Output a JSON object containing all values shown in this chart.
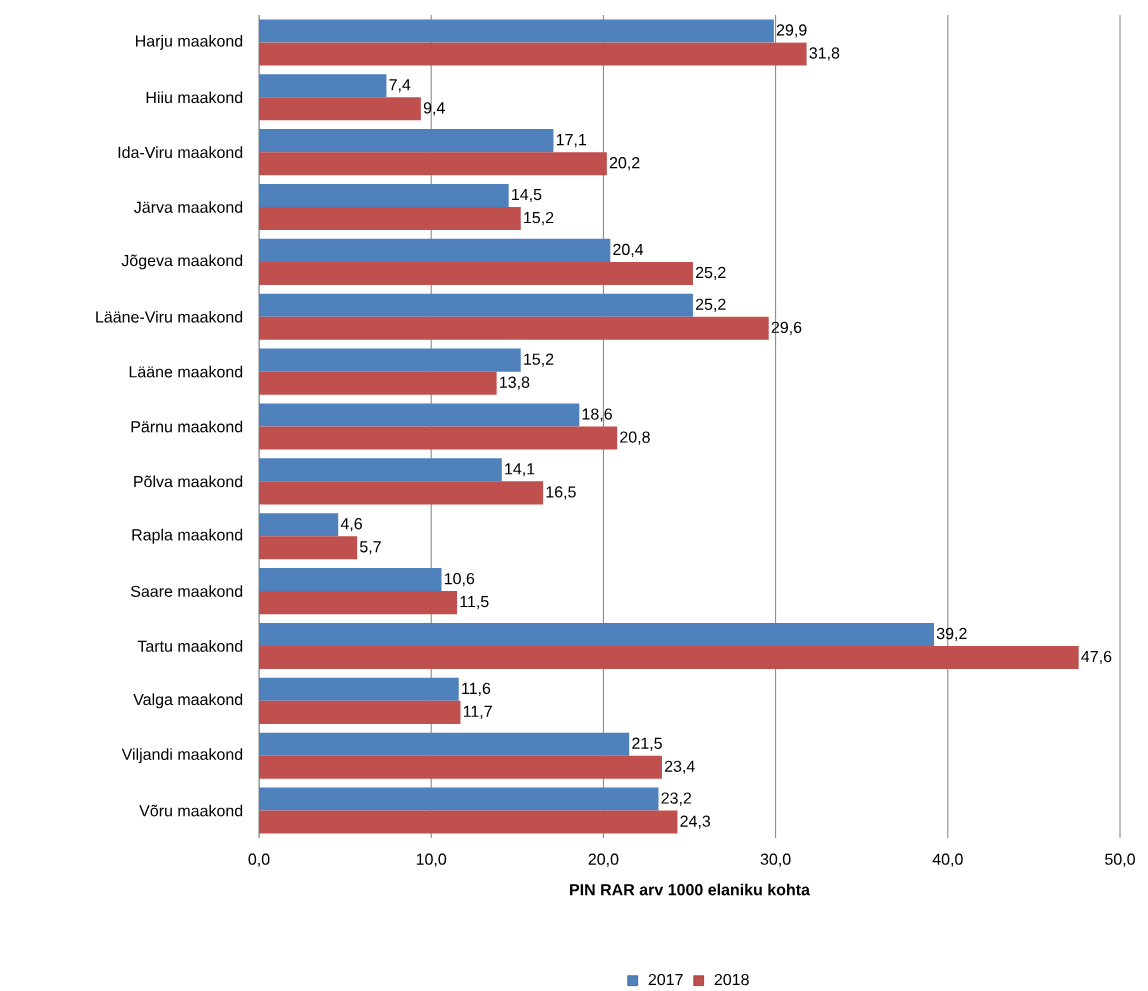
{
  "chart_data": {
    "type": "bar",
    "orientation": "horizontal",
    "xlabel": "PIN RAR arv 1000 elaniku kohta",
    "categories": [
      "Harju maakond",
      "Hiiu maakond",
      "Ida-Viru maakond",
      "Järva maakond",
      "Jõgeva maakond",
      "Lääne-Viru maakond",
      "Lääne maakond",
      "Pärnu maakond",
      "Põlva maakond",
      "Rapla maakond",
      "Saare maakond",
      "Tartu maakond",
      "Valga maakond",
      "Viljandi maakond",
      "Võru maakond"
    ],
    "series": [
      {
        "name": "2017",
        "color": "#4f81bd",
        "values": [
          29.9,
          7.4,
          17.1,
          14.5,
          20.4,
          25.2,
          15.2,
          18.6,
          14.1,
          4.6,
          10.6,
          39.2,
          11.6,
          21.5,
          23.2
        ],
        "value_labels": [
          "29,9",
          "7,4",
          "17,1",
          "14,5",
          "20,4",
          "25,2",
          "15,2",
          "18,6",
          "14,1",
          "4,6",
          "10,6",
          "39,2",
          "11,6",
          "21,5",
          "23,2"
        ]
      },
      {
        "name": "2018",
        "color": "#c0504d",
        "values": [
          31.8,
          9.4,
          20.2,
          15.2,
          25.2,
          29.6,
          13.8,
          20.8,
          16.5,
          5.7,
          11.5,
          47.6,
          11.7,
          23.4,
          24.3
        ],
        "value_labels": [
          "31,8",
          "9,4",
          "20,2",
          "15,2",
          "25,2",
          "29,6",
          "13,8",
          "20,8",
          "16,5",
          "5,7",
          "11,5",
          "47,6",
          "11,7",
          "23,4",
          "24,3"
        ]
      }
    ],
    "xlim": [
      0,
      50
    ],
    "xticks": [
      {
        "value": 0,
        "label": "0,0"
      },
      {
        "value": 10,
        "label": "10,0"
      },
      {
        "value": 20,
        "label": "20,0"
      },
      {
        "value": 30,
        "label": "30,0"
      },
      {
        "value": 40,
        "label": "40,0"
      },
      {
        "value": 50,
        "label": "50,0"
      }
    ],
    "grid": "x",
    "legend": "bottom"
  }
}
